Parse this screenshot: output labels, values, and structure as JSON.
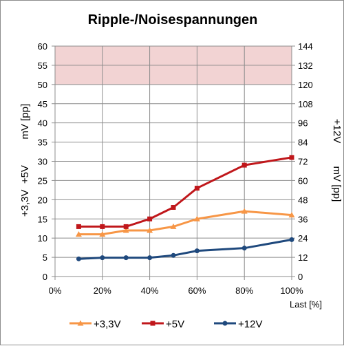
{
  "chart_data": {
    "type": "line",
    "title": "Ripple-/Noisespannungen",
    "xlabel": "Last [%]",
    "ylabel_left": "+3,3V  +5V         mV [pp]",
    "ylabel_right": "+12V        mV [pp]",
    "x_ticks": [
      "0%",
      "20%",
      "40%",
      "60%",
      "80%",
      "100%"
    ],
    "xlim": [
      0,
      100
    ],
    "ylim_left": [
      0,
      60
    ],
    "ylim_right": [
      0,
      144
    ],
    "y_ticks_left": [
      "0",
      "5",
      "10",
      "15",
      "20",
      "25",
      "30",
      "35",
      "40",
      "45",
      "50",
      "55",
      "60"
    ],
    "y_ticks_right": [
      "0",
      "12",
      "24",
      "36",
      "48",
      "60",
      "72",
      "84",
      "96",
      "108",
      "120",
      "132",
      "144"
    ],
    "limit_band": {
      "from": 50,
      "to": 60,
      "color": "#f2d3d3"
    },
    "grid": true,
    "legend_position": "bottom",
    "x": [
      10,
      20,
      30,
      40,
      50,
      60,
      80,
      100
    ],
    "series": [
      {
        "name": "+3,3V",
        "color": "#f79646",
        "marker": "triangle",
        "values": [
          11,
          11,
          12,
          12,
          13,
          15,
          17,
          16
        ]
      },
      {
        "name": "+5V",
        "color": "#c0171b",
        "marker": "square",
        "values": [
          13,
          13,
          13,
          15,
          18,
          23,
          29,
          31
        ]
      },
      {
        "name": "+12V",
        "color": "#1f497d",
        "marker": "circle",
        "values": [
          4.6,
          4.9,
          4.9,
          4.9,
          5.5,
          6.7,
          7.4,
          9.6
        ]
      }
    ]
  }
}
